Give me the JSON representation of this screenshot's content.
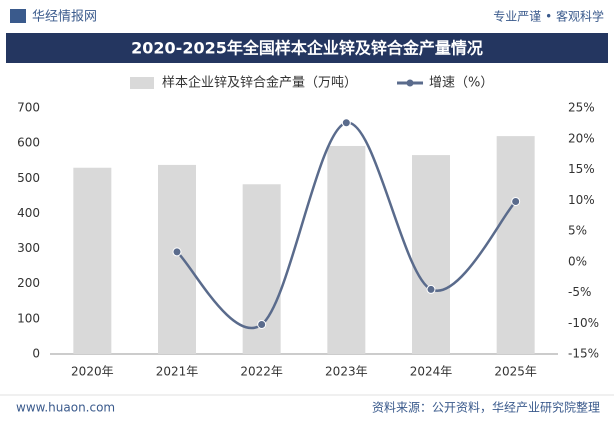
{
  "header": {
    "brand": "华经情报网",
    "slogan": "专业严谨 • 客观科学"
  },
  "chart_data": {
    "type": "combo",
    "title": "2020-2025年全国样本企业锌及锌合金产量情况",
    "categories": [
      "2020年",
      "2021年",
      "2022年",
      "2023年",
      "2024年",
      "2025年"
    ],
    "series": [
      {
        "name": "样本企业锌及锌合金产量（万吨）",
        "type": "bar",
        "color": "#d9d9d9",
        "values": [
          530,
          538,
          483,
          592,
          566,
          620
        ]
      },
      {
        "name": "增速（%）",
        "type": "line",
        "axis": "y2",
        "color": "#5a6b8c",
        "values": [
          null,
          1.6,
          -10.2,
          22.6,
          -4.5,
          9.8
        ]
      }
    ],
    "ylim": [
      0,
      700
    ],
    "yticks": [
      0,
      100,
      200,
      300,
      400,
      500,
      600,
      700
    ],
    "y2lim": [
      -15,
      25
    ],
    "y2ticks": [
      {
        "value": 25,
        "label": "25%"
      },
      {
        "value": 20,
        "label": "20%"
      },
      {
        "value": 15,
        "label": "15%"
      },
      {
        "value": 10,
        "label": "10%"
      },
      {
        "value": 5,
        "label": "5%"
      },
      {
        "value": 0,
        "label": "0%"
      },
      {
        "value": -5,
        "label": "-5%"
      },
      {
        "value": -10,
        "label": "-10%"
      },
      {
        "value": -15,
        "label": "-15%"
      }
    ],
    "grid": false,
    "legend": "top"
  },
  "footer": {
    "website": "www.huaon.com",
    "source": "资料来源：公开资料，华经产业研究院整理"
  }
}
